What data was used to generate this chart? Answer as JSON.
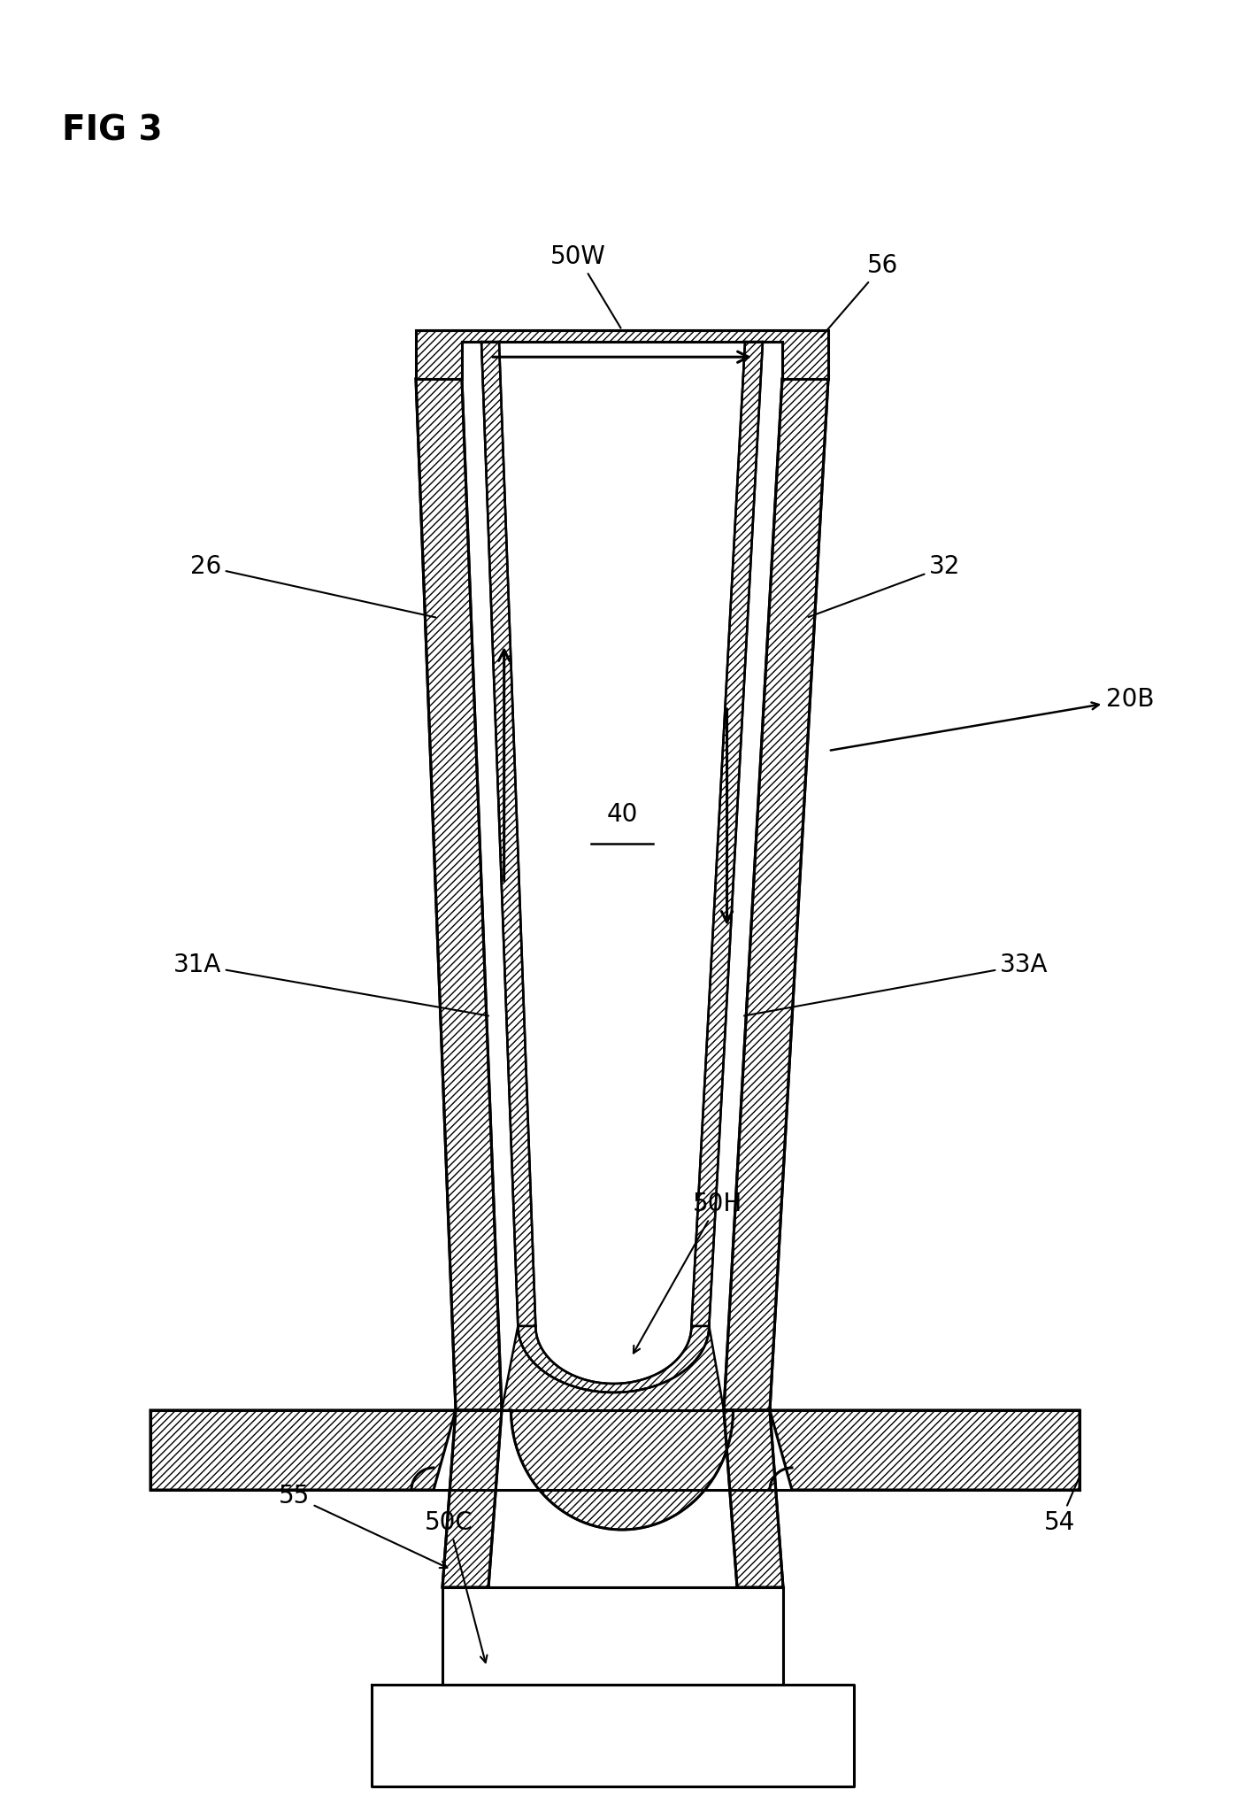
{
  "background_color": "#ffffff",
  "line_color": "#000000",
  "hatch": "////",
  "lw": 2.2,
  "lw_thin": 1.8,
  "labels": {
    "fig_title": "FIG 3",
    "50W": "50W",
    "56": "56",
    "26": "26",
    "32": "32",
    "20B": "20B",
    "31A": "31A",
    "33A": "33A",
    "40": "40",
    "50H": "50H",
    "55": "55",
    "50C": "50C",
    "54": "54"
  },
  "fig_width": 14.07,
  "fig_height": 20.48,
  "dpi": 100
}
